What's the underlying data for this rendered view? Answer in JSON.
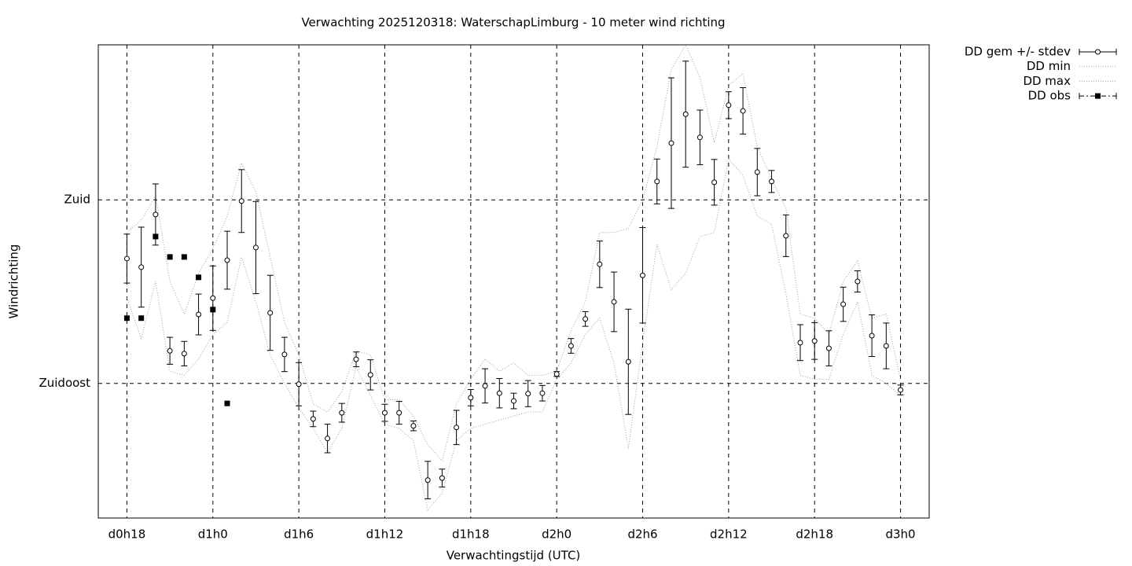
{
  "chart_data": {
    "type": "errorbar",
    "title": "Verwachting 2025120318: WaterschapLimburg - 10 meter wind richting",
    "xlabel": "Verwachtingstijd (UTC)",
    "ylabel": "Windrichting",
    "xlim": [
      16,
      74
    ],
    "ylim": [
      102,
      218
    ],
    "xticks": [
      {
        "value": 18,
        "label": "d0h18"
      },
      {
        "value": 24,
        "label": "d1h0"
      },
      {
        "value": 30,
        "label": "d1h6"
      },
      {
        "value": 36,
        "label": "d1h12"
      },
      {
        "value": 42,
        "label": "d1h18"
      },
      {
        "value": 48,
        "label": "d2h0"
      },
      {
        "value": 54,
        "label": "d2h6"
      },
      {
        "value": 60,
        "label": "d2h12"
      },
      {
        "value": 66,
        "label": "d2h18"
      },
      {
        "value": 72,
        "label": "d3h0"
      }
    ],
    "yticks": [
      {
        "value": 135,
        "label": "Zuidoost"
      },
      {
        "value": 180,
        "label": "Zuid"
      }
    ],
    "grid": true,
    "legend": "outside-top-right",
    "x": [
      18,
      19,
      20,
      21,
      22,
      23,
      24,
      25,
      26,
      27,
      28,
      29,
      30,
      31,
      32,
      33,
      34,
      35,
      36,
      37,
      38,
      39,
      40,
      41,
      42,
      43,
      44,
      45,
      46,
      47,
      48,
      49,
      50,
      51,
      52,
      53,
      54,
      55,
      56,
      57,
      58,
      59,
      60,
      61,
      62,
      63,
      64,
      65,
      66,
      67,
      68,
      69,
      70,
      71,
      72
    ],
    "series": [
      {
        "name": "DD gem +/- stdev",
        "color": "#000000",
        "values": [
          165.6,
          163.5,
          176.4,
          143.0,
          142.3,
          151.9,
          155.9,
          165.2,
          179.7,
          168.3,
          152.3,
          142.1,
          134.8,
          126.3,
          121.5,
          127.8,
          140.9,
          137.1,
          127.8,
          127.8,
          124.6,
          111.3,
          111.8,
          124.2,
          131.5,
          134.4,
          132.6,
          130.7,
          132.5,
          132.6,
          137.3,
          144.2,
          150.8,
          164.2,
          155.0,
          140.3,
          161.5,
          184.5,
          193.9,
          201.0,
          195.3,
          184.3,
          203.2,
          201.8,
          186.8,
          184.5,
          171.2,
          145.0,
          145.4,
          143.6,
          154.4,
          160.0,
          146.7,
          144.2,
          133.4
        ],
        "errors": [
          6.0,
          9.8,
          7.5,
          3.3,
          3.0,
          5.0,
          7.9,
          7.1,
          7.7,
          11.3,
          9.2,
          4.2,
          5.3,
          1.9,
          3.5,
          2.3,
          1.8,
          3.7,
          2.1,
          2.8,
          1.2,
          4.6,
          2.2,
          4.2,
          2.0,
          4.2,
          3.6,
          1.9,
          3.2,
          1.9,
          0.6,
          1.8,
          1.8,
          5.7,
          7.3,
          12.9,
          11.7,
          5.5,
          16.0,
          13.0,
          6.7,
          5.6,
          3.3,
          5.7,
          5.8,
          2.7,
          5.1,
          4.4,
          4.5,
          4.3,
          4.2,
          2.6,
          5.1,
          5.6,
          1.2
        ]
      },
      {
        "name": "DD min",
        "color": "#a0a0a0",
        "values": [
          156,
          146,
          160,
          138,
          137,
          141,
          147,
          150,
          166,
          155,
          142,
          135,
          129,
          124,
          118,
          124,
          139,
          132,
          125,
          124,
          121,
          104,
          108,
          121,
          124,
          125,
          126,
          127,
          128,
          128,
          136,
          140,
          147,
          151,
          140,
          119,
          145,
          169,
          158,
          162,
          171,
          172,
          190,
          186,
          176,
          174,
          157,
          137,
          136,
          136,
          147,
          155,
          137,
          135,
          132
        ]
      },
      {
        "name": "DD max",
        "color": "#a0a0a0",
        "values": [
          172,
          175,
          181,
          160,
          152,
          162,
          168,
          176,
          189,
          182,
          166,
          150,
          142,
          130,
          128,
          133,
          143,
          142,
          131,
          131,
          127,
          120,
          116,
          130,
          136,
          141,
          138,
          140,
          137,
          137,
          138,
          148,
          155,
          172,
          172,
          173,
          180,
          193,
          212,
          218,
          210,
          194,
          208,
          211,
          193,
          185,
          178,
          152,
          151,
          147,
          160,
          165,
          151,
          152,
          136
        ]
      },
      {
        "name": "DD obs",
        "color": "#000000",
        "x": [
          18,
          19,
          20,
          21,
          22,
          23,
          24,
          25
        ],
        "values": [
          151.0,
          151.0,
          171.0,
          166.0,
          166.0,
          161.0,
          153.1,
          130.1
        ]
      }
    ]
  }
}
